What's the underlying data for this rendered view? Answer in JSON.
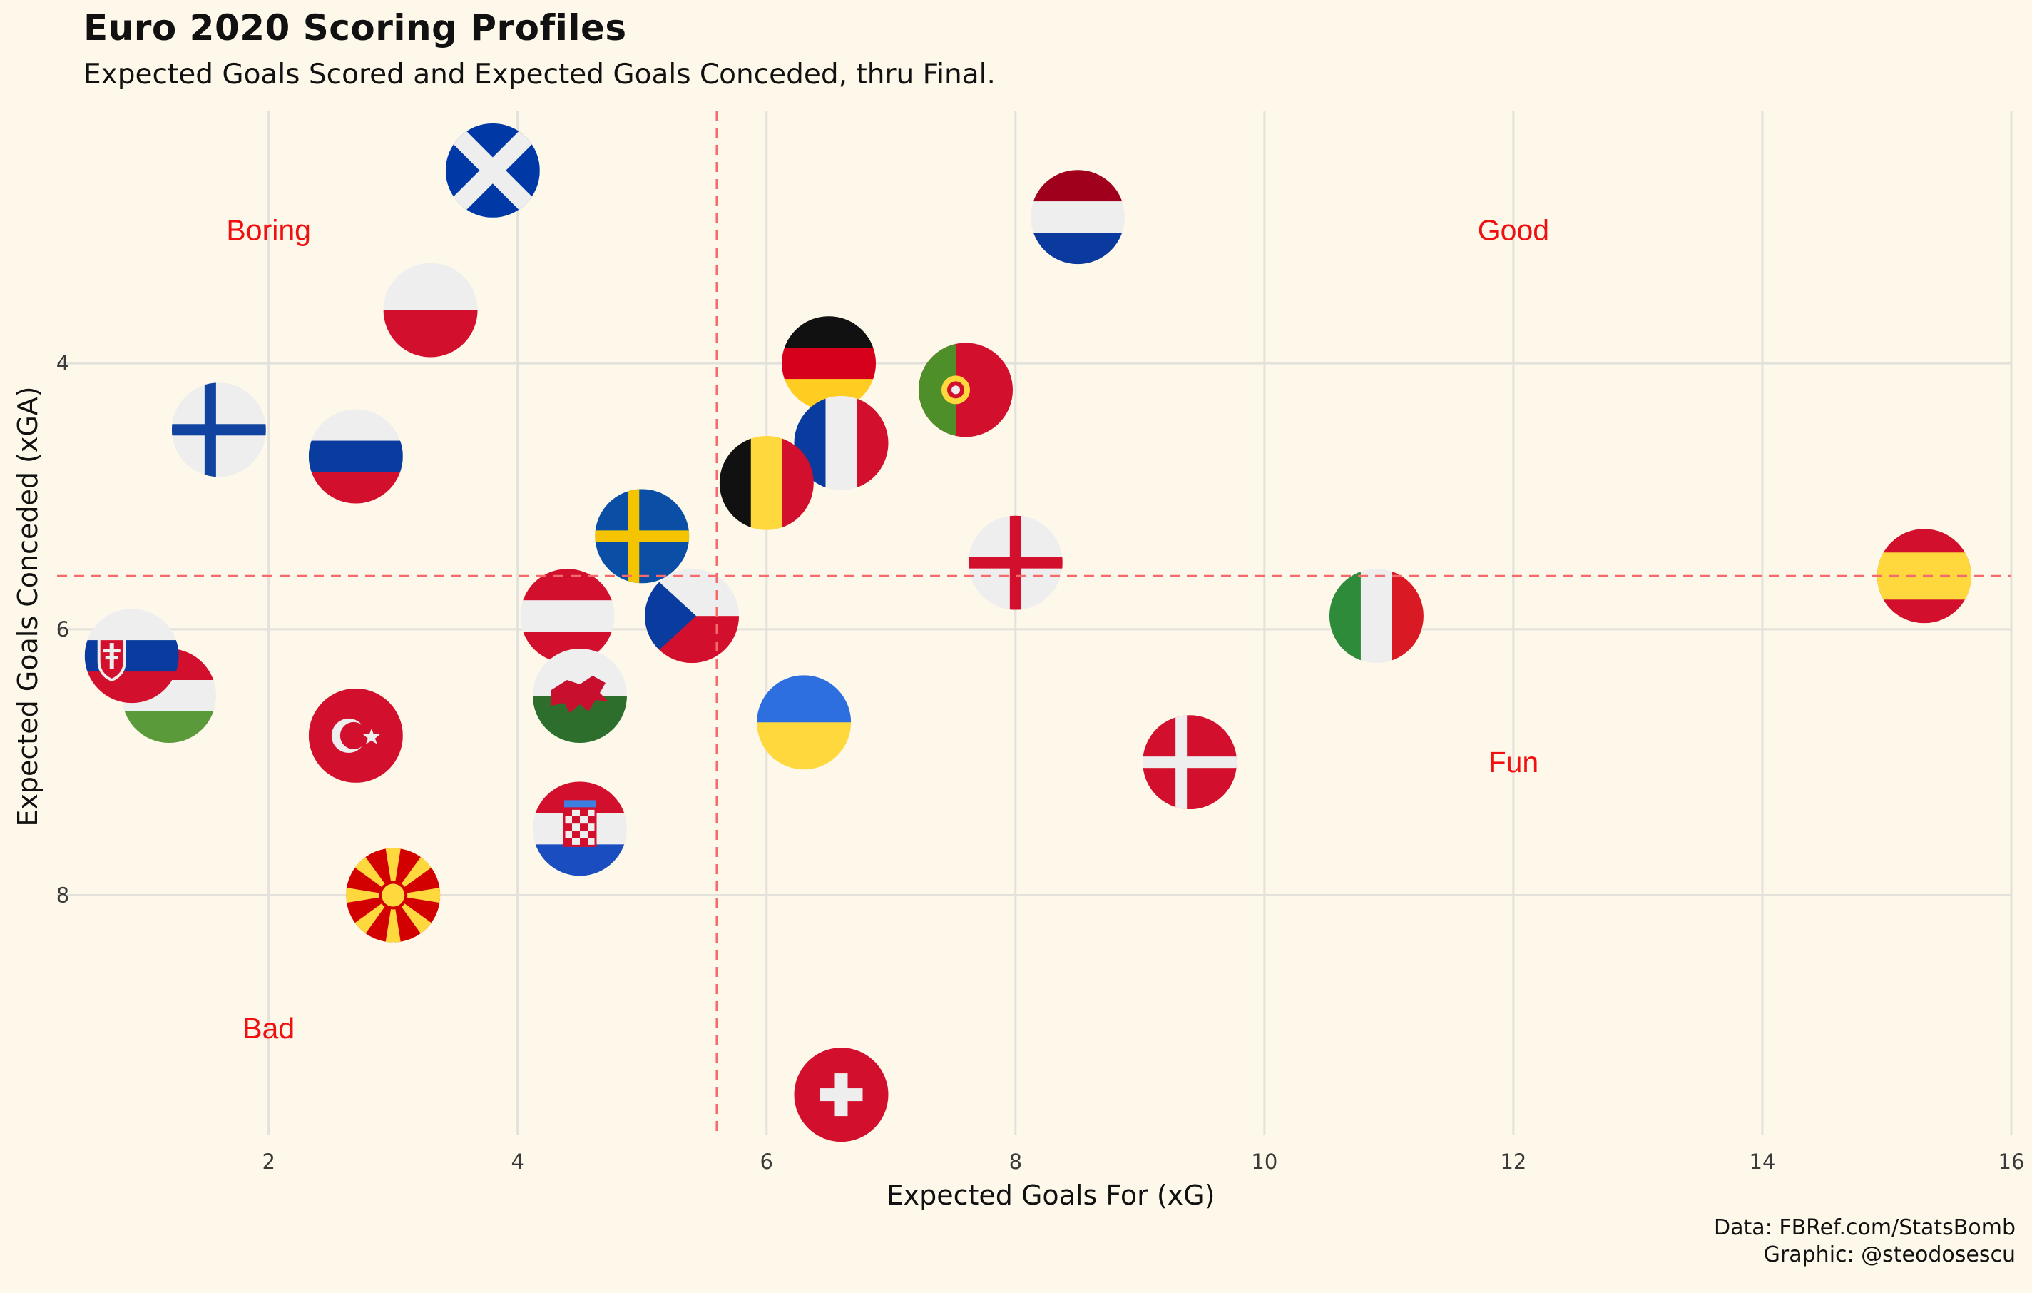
{
  "title": "Euro 2020 Scoring Profiles",
  "subtitle": "Expected Goals Scored and Expected Goals Conceded, thru Final.",
  "caption_line1": "Data: FBRef.com/StatsBomb",
  "caption_line2": "Graphic: @steodosescu",
  "chart_data": {
    "type": "scatter",
    "xlabel": "Expected Goals For (xG)",
    "ylabel": "Expected Goals Conceded (xGA)",
    "xlim": [
      0.3,
      16
    ],
    "ylim": [
      2.1,
      9.8
    ],
    "y_reversed": true,
    "xticks": [
      2,
      4,
      6,
      8,
      10,
      12,
      14,
      16
    ],
    "yticks": [
      4,
      6,
      8
    ],
    "reference_lines": {
      "x": 5.6,
      "y": 5.6,
      "style": "dashed",
      "color": "#f56b6b"
    },
    "quadrant_labels": [
      {
        "text": "Boring",
        "x": 2.0,
        "y": 3.0
      },
      {
        "text": "Good",
        "x": 12.0,
        "y": 3.0
      },
      {
        "text": "Fun",
        "x": 12.0,
        "y": 7.0
      },
      {
        "text": "Bad",
        "x": 2.0,
        "y": 9.0
      }
    ],
    "points": [
      {
        "team": "Scotland",
        "flag": "scotland",
        "xg": 3.8,
        "xga": 2.55
      },
      {
        "team": "Netherlands",
        "flag": "netherlands",
        "xg": 8.5,
        "xga": 2.9
      },
      {
        "team": "Poland",
        "flag": "poland",
        "xg": 3.3,
        "xga": 3.6
      },
      {
        "team": "Germany",
        "flag": "germany",
        "xg": 6.5,
        "xga": 4.0
      },
      {
        "team": "Portugal",
        "flag": "portugal",
        "xg": 7.6,
        "xga": 4.2
      },
      {
        "team": "Finland",
        "flag": "finland",
        "xg": 1.6,
        "xga": 4.5
      },
      {
        "team": "France",
        "flag": "france",
        "xg": 6.6,
        "xga": 4.6
      },
      {
        "team": "Russia",
        "flag": "russia",
        "xg": 2.7,
        "xga": 4.7
      },
      {
        "team": "Belgium",
        "flag": "belgium",
        "xg": 6.0,
        "xga": 4.9
      },
      {
        "team": "Sweden",
        "flag": "sweden",
        "xg": 5.0,
        "xga": 5.3
      },
      {
        "team": "England",
        "flag": "england",
        "xg": 8.0,
        "xga": 5.5
      },
      {
        "team": "Spain",
        "flag": "spain",
        "xg": 15.3,
        "xga": 5.6
      },
      {
        "team": "Austria",
        "flag": "austria",
        "xg": 4.4,
        "xga": 5.9
      },
      {
        "team": "Czech Republic",
        "flag": "czech",
        "xg": 5.4,
        "xga": 5.9
      },
      {
        "team": "Italy",
        "flag": "italy",
        "xg": 10.9,
        "xga": 5.9
      },
      {
        "team": "Hungary",
        "flag": "hungary",
        "xg": 1.2,
        "xga": 6.5
      },
      {
        "team": "Slovakia",
        "flag": "slovakia",
        "xg": 0.9,
        "xga": 6.2
      },
      {
        "team": "Wales",
        "flag": "wales",
        "xg": 4.5,
        "xga": 6.5
      },
      {
        "team": "Ukraine",
        "flag": "ukraine",
        "xg": 6.3,
        "xga": 6.7
      },
      {
        "team": "Turkey",
        "flag": "turkey",
        "xg": 2.7,
        "xga": 6.8
      },
      {
        "team": "Denmark",
        "flag": "denmark",
        "xg": 9.4,
        "xga": 7.0
      },
      {
        "team": "Croatia",
        "flag": "croatia",
        "xg": 4.5,
        "xga": 7.5
      },
      {
        "team": "North Macedonia",
        "flag": "macedonia",
        "xg": 3.0,
        "xga": 8.0
      },
      {
        "team": "Switzerland",
        "flag": "switzerland",
        "xg": 6.6,
        "xga": 9.5
      }
    ]
  }
}
